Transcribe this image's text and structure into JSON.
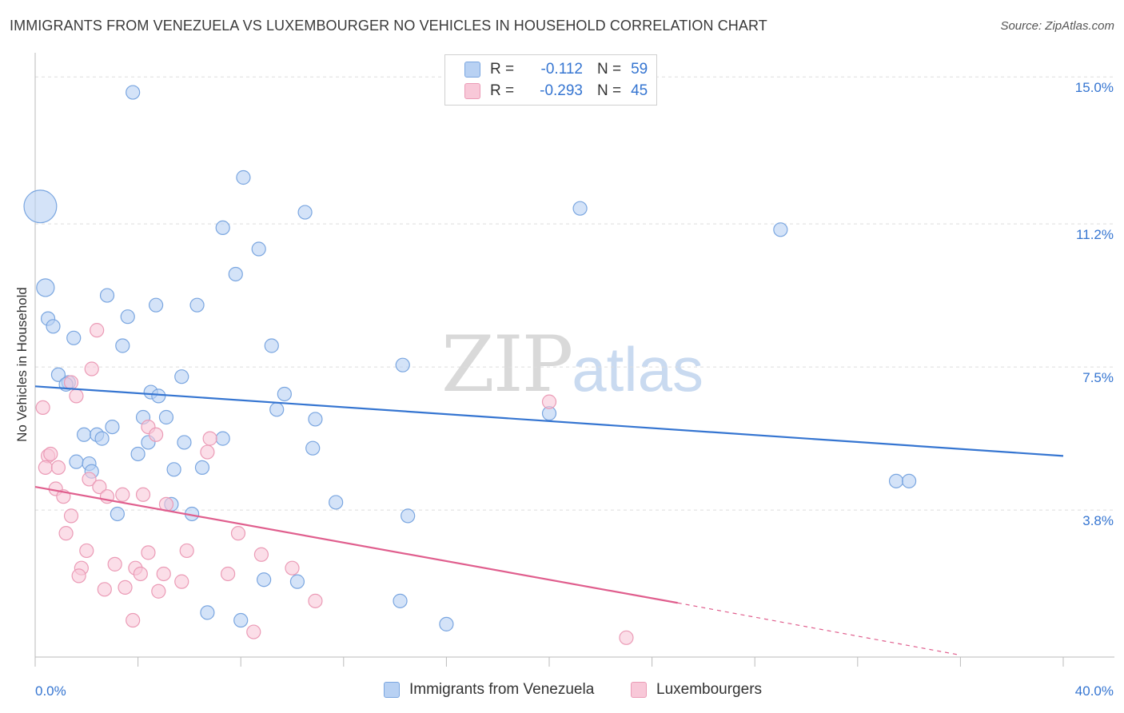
{
  "header": {
    "title": "IMMIGRANTS FROM VENEZUELA VS LUXEMBOURGER NO VEHICLES IN HOUSEHOLD CORRELATION CHART",
    "source": "Source: ZipAtlas.com"
  },
  "watermark": {
    "zip": "ZIP",
    "atlas": "atlas"
  },
  "legend": {
    "rows": [
      {
        "r_label": "R =",
        "r_value": "-0.112",
        "n_label": "N =",
        "n_value": "59"
      },
      {
        "r_label": "R =",
        "r_value": "-0.293",
        "n_label": "N =",
        "n_value": "45"
      }
    ]
  },
  "colors": {
    "blue_fill": "#b8d1f3",
    "blue_stroke": "#7aa6e0",
    "blue_line": "#3575d1",
    "pink_fill": "#f8c8d8",
    "pink_stroke": "#eb9bb6",
    "pink_line": "#e05f8e",
    "grid": "#dddddd",
    "tick_label": "#3575d1"
  },
  "chart_data": {
    "type": "scatter",
    "title": "IMMIGRANTS FROM VENEZUELA VS LUXEMBOURGER NO VEHICLES IN HOUSEHOLD CORRELATION CHART",
    "xlabel": "",
    "ylabel": "No Vehicles in Household",
    "xlim": [
      0,
      40
    ],
    "ylim": [
      0,
      15.5
    ],
    "x_tick_labels": [
      "0.0%",
      "40.0%"
    ],
    "y_ticks": [
      3.8,
      7.5,
      11.2,
      15.0
    ],
    "y_tick_labels": [
      "3.8%",
      "7.5%",
      "11.2%",
      "15.0%"
    ],
    "grid": true,
    "series": [
      {
        "name": "Immigrants from Venezuela",
        "color": "blue",
        "trend": {
          "x0": 0,
          "y0": 7.0,
          "x1": 40,
          "y1": 5.2
        },
        "points": [
          [
            0.2,
            11.65,
            2.4
          ],
          [
            3.8,
            14.6,
            1
          ],
          [
            8.1,
            12.4,
            1
          ],
          [
            10.5,
            11.5,
            1
          ],
          [
            7.3,
            11.1,
            1
          ],
          [
            21.2,
            11.6,
            1
          ],
          [
            29.0,
            11.05,
            1
          ],
          [
            8.7,
            10.55,
            1
          ],
          [
            7.8,
            9.9,
            1
          ],
          [
            0.4,
            9.55,
            1.3
          ],
          [
            2.8,
            9.35,
            1
          ],
          [
            6.3,
            9.1,
            1
          ],
          [
            4.7,
            9.1,
            1
          ],
          [
            3.6,
            8.8,
            1
          ],
          [
            0.5,
            8.75,
            1
          ],
          [
            0.7,
            8.55,
            1
          ],
          [
            1.5,
            8.25,
            1
          ],
          [
            3.4,
            8.05,
            1
          ],
          [
            9.2,
            8.05,
            1
          ],
          [
            14.3,
            7.55,
            1
          ],
          [
            0.9,
            7.3,
            1
          ],
          [
            1.3,
            7.1,
            1
          ],
          [
            5.7,
            7.25,
            1
          ],
          [
            1.2,
            7.05,
            1
          ],
          [
            4.5,
            6.85,
            1
          ],
          [
            4.8,
            6.75,
            1
          ],
          [
            9.7,
            6.8,
            1
          ],
          [
            9.4,
            6.4,
            1
          ],
          [
            10.9,
            6.15,
            1
          ],
          [
            4.2,
            6.2,
            1
          ],
          [
            5.1,
            6.2,
            1
          ],
          [
            20.0,
            6.3,
            1
          ],
          [
            3.0,
            5.95,
            1
          ],
          [
            1.9,
            5.75,
            1
          ],
          [
            2.4,
            5.75,
            1
          ],
          [
            2.6,
            5.65,
            1
          ],
          [
            7.3,
            5.65,
            1
          ],
          [
            4.4,
            5.55,
            1
          ],
          [
            5.8,
            5.55,
            1
          ],
          [
            10.8,
            5.4,
            1
          ],
          [
            4.0,
            5.25,
            1
          ],
          [
            1.6,
            5.05,
            1
          ],
          [
            2.1,
            5.0,
            1
          ],
          [
            2.2,
            4.8,
            1
          ],
          [
            5.4,
            4.85,
            1
          ],
          [
            6.5,
            4.9,
            1
          ],
          [
            33.5,
            4.55,
            1
          ],
          [
            34.0,
            4.55,
            1
          ],
          [
            11.7,
            4.0,
            1
          ],
          [
            5.3,
            3.95,
            1
          ],
          [
            3.2,
            3.7,
            1
          ],
          [
            6.1,
            3.7,
            1
          ],
          [
            14.5,
            3.65,
            1
          ],
          [
            8.9,
            2.0,
            1
          ],
          [
            10.2,
            1.95,
            1
          ],
          [
            14.2,
            1.45,
            1
          ],
          [
            6.7,
            1.15,
            1
          ],
          [
            8.0,
            0.95,
            1
          ],
          [
            16.0,
            0.85,
            1
          ]
        ]
      },
      {
        "name": "Luxembourgers",
        "color": "pink",
        "trend": {
          "x0": 0,
          "y0": 4.4,
          "x1": 25,
          "y1": 1.4,
          "dash_to_x": 36,
          "dash_to_y": 0.05
        },
        "points": [
          [
            2.4,
            8.45,
            1
          ],
          [
            2.2,
            7.45,
            1
          ],
          [
            1.4,
            7.1,
            1
          ],
          [
            1.6,
            6.75,
            1
          ],
          [
            0.3,
            6.45,
            1
          ],
          [
            20.0,
            6.6,
            1
          ],
          [
            4.4,
            5.95,
            1
          ],
          [
            4.7,
            5.75,
            1
          ],
          [
            6.8,
            5.65,
            1
          ],
          [
            6.7,
            5.3,
            1
          ],
          [
            0.5,
            5.2,
            1
          ],
          [
            0.6,
            5.25,
            1
          ],
          [
            0.4,
            4.9,
            1
          ],
          [
            0.9,
            4.9,
            1
          ],
          [
            2.1,
            4.6,
            1
          ],
          [
            2.5,
            4.4,
            1
          ],
          [
            0.8,
            4.35,
            1
          ],
          [
            3.4,
            4.2,
            1
          ],
          [
            4.2,
            4.2,
            1
          ],
          [
            1.1,
            4.15,
            1
          ],
          [
            2.8,
            4.15,
            1
          ],
          [
            5.1,
            3.95,
            1
          ],
          [
            1.4,
            3.65,
            1
          ],
          [
            1.2,
            3.2,
            1
          ],
          [
            7.9,
            3.2,
            1
          ],
          [
            2.0,
            2.75,
            1
          ],
          [
            5.9,
            2.75,
            1
          ],
          [
            4.4,
            2.7,
            1
          ],
          [
            8.8,
            2.65,
            1
          ],
          [
            3.1,
            2.4,
            1
          ],
          [
            1.8,
            2.3,
            1
          ],
          [
            3.9,
            2.3,
            1
          ],
          [
            10.0,
            2.3,
            1
          ],
          [
            1.7,
            2.1,
            1
          ],
          [
            4.1,
            2.15,
            1
          ],
          [
            5.0,
            2.15,
            1
          ],
          [
            7.5,
            2.15,
            1
          ],
          [
            5.7,
            1.95,
            1
          ],
          [
            2.7,
            1.75,
            1
          ],
          [
            3.5,
            1.8,
            1
          ],
          [
            4.8,
            1.7,
            1
          ],
          [
            10.9,
            1.45,
            1
          ],
          [
            3.8,
            0.95,
            1
          ],
          [
            8.5,
            0.65,
            1
          ],
          [
            23.0,
            0.5,
            1
          ]
        ]
      }
    ]
  },
  "bottom_legend": {
    "items": [
      {
        "label": "Immigrants from Venezuela"
      },
      {
        "label": "Luxembourgers"
      }
    ]
  }
}
